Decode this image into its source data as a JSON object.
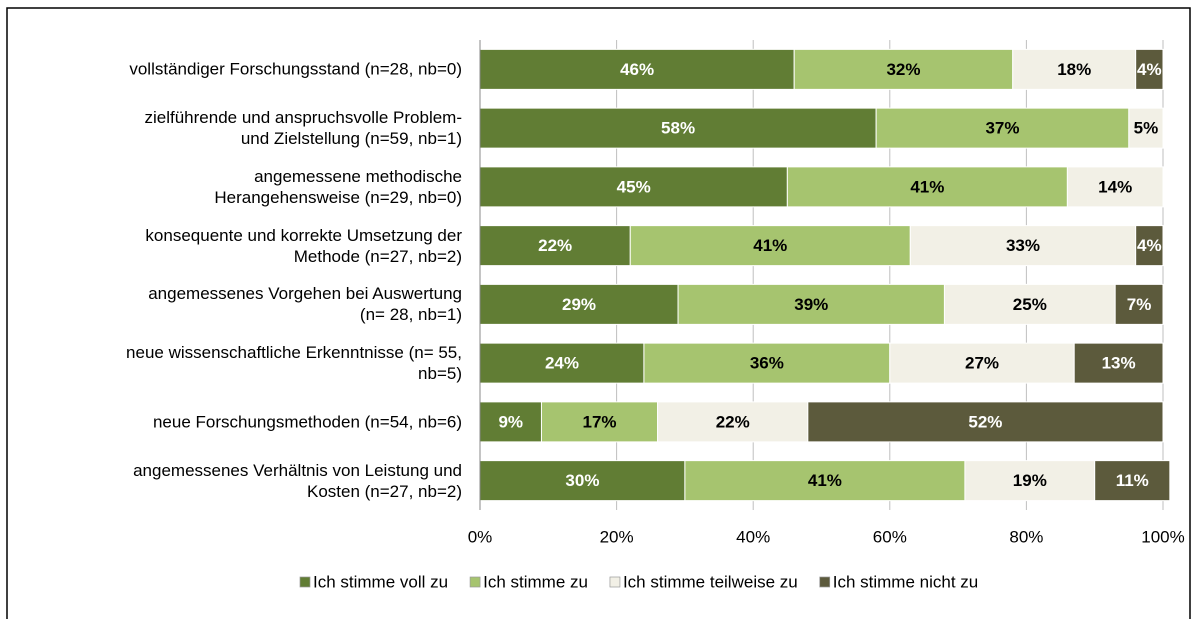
{
  "chart_data": {
    "type": "stacked_barh",
    "categories": [
      "vollständiger Forschungsstand  (n=28, nb=0)",
      "zielführende und anspruchsvolle Problem-\nund Zielstellung (n=59, nb=1)",
      "angemessene methodische\nHerangehensweise (n=29, nb=0)",
      "konsequente und korrekte Umsetzung der\nMethode (n=27, nb=2)",
      "angemessenes Vorgehen bei Auswertung\n(n= 28, nb=1)",
      "neue wissenschaftliche Erkenntnisse (n= 55,\nnb=5)",
      "neue Forschungsmethoden (n=54, nb=6)",
      "angemessenes Verhältnis von Leistung und\nKosten (n=27, nb=2)"
    ],
    "series": [
      {
        "name": "Ich stimme voll zu",
        "color": "#617d34",
        "values": [
          46,
          58,
          45,
          22,
          29,
          24,
          9,
          30
        ],
        "value_labels": [
          "46%",
          "58%",
          "45%",
          "22%",
          "29%",
          "24%",
          "9%",
          "30%"
        ]
      },
      {
        "name": "Ich stimme zu",
        "color": "#a6c46f",
        "values": [
          32,
          37,
          41,
          41,
          39,
          36,
          17,
          41
        ],
        "value_labels": [
          "32%",
          "37%",
          "41%",
          "41%",
          "39%",
          "36%",
          "17%",
          "41%"
        ]
      },
      {
        "name": "Ich stimme teilweise zu",
        "color": "#f2f0e6",
        "values": [
          18,
          5,
          14,
          33,
          25,
          27,
          22,
          19
        ],
        "value_labels": [
          "18%",
          "5%",
          "14%",
          "33%",
          "25%",
          "27%",
          "22%",
          "19%"
        ]
      },
      {
        "name": "Ich stimme nicht  zu",
        "color": "#5c5a3c",
        "values": [
          4,
          null,
          null,
          4,
          7,
          13,
          52,
          11
        ],
        "value_labels": [
          "4%",
          null,
          null,
          "4%",
          "7%",
          "13%",
          "52%",
          "11%"
        ]
      }
    ],
    "xlim": [
      0,
      100
    ],
    "xticks": [
      {
        "value": 0,
        "label": "0%"
      },
      {
        "value": 20,
        "label": "20%"
      },
      {
        "value": 40,
        "label": "40%"
      },
      {
        "value": 60,
        "label": "60%"
      },
      {
        "value": 80,
        "label": "80%"
      },
      {
        "value": 100,
        "label": "100%"
      }
    ],
    "grid": true,
    "legend": "bottom"
  }
}
